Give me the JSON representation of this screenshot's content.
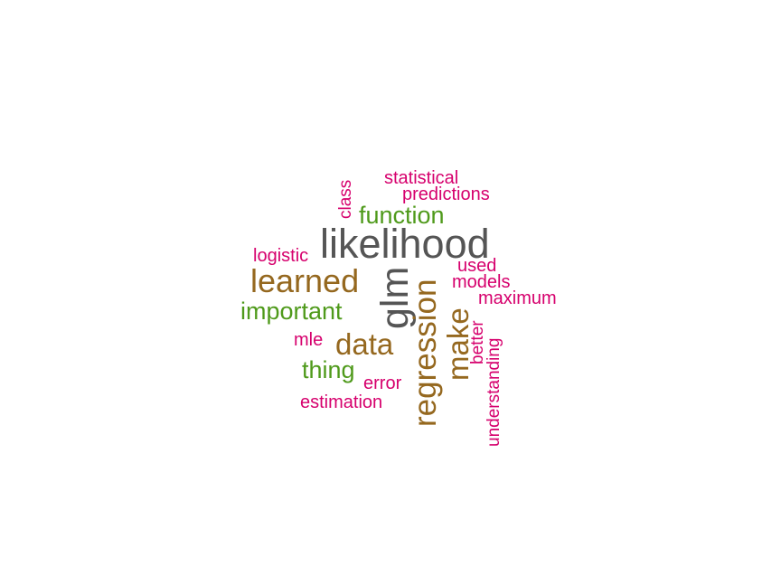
{
  "word_cloud": {
    "colors": {
      "gray": "#555555",
      "brown": "#95681f",
      "green": "#4f9a1b",
      "pink": "#d6006d"
    },
    "words": [
      {
        "text": "likelihood",
        "color": "gray"
      },
      {
        "text": "glm",
        "color": "gray"
      },
      {
        "text": "learned",
        "color": "brown"
      },
      {
        "text": "data",
        "color": "brown"
      },
      {
        "text": "regression",
        "color": "brown"
      },
      {
        "text": "make",
        "color": "brown"
      },
      {
        "text": "function",
        "color": "green"
      },
      {
        "text": "important",
        "color": "green"
      },
      {
        "text": "thing",
        "color": "green"
      },
      {
        "text": "statistical",
        "color": "pink"
      },
      {
        "text": "predictions",
        "color": "pink"
      },
      {
        "text": "class",
        "color": "pink"
      },
      {
        "text": "logistic",
        "color": "pink"
      },
      {
        "text": "used",
        "color": "pink"
      },
      {
        "text": "models",
        "color": "pink"
      },
      {
        "text": "maximum",
        "color": "pink"
      },
      {
        "text": "mle",
        "color": "pink"
      },
      {
        "text": "better",
        "color": "pink"
      },
      {
        "text": "error",
        "color": "pink"
      },
      {
        "text": "estimation",
        "color": "pink"
      },
      {
        "text": "understanding",
        "color": "pink"
      }
    ]
  }
}
